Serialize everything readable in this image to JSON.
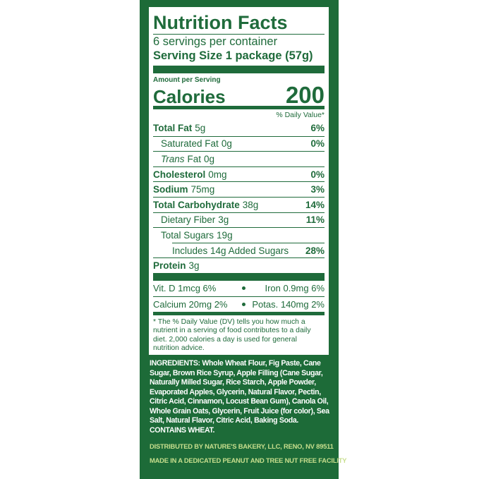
{
  "label": {
    "title": "Nutrition Facts",
    "servings": "6 servings per container",
    "serving_size": "Serving Size 1 package (57g)",
    "amount_per_serving": "Amount per Serving",
    "calories_label": "Calories",
    "calories": "200",
    "dv_header": "% Daily Value*",
    "nutrients": [
      {
        "name": "Total Fat",
        "amount": "5g",
        "dv": "6%",
        "bold": true,
        "level": 0
      },
      {
        "name": "Saturated Fat",
        "amount": "0g",
        "dv": "0%",
        "bold": false,
        "level": 1
      },
      {
        "name": "Trans",
        "name_rest": "Fat",
        "amount": "0g",
        "italic": true,
        "bold": false,
        "level": 1
      },
      {
        "name": "Cholesterol",
        "amount": "0mg",
        "dv": "0%",
        "bold": true,
        "level": 0
      },
      {
        "name": "Sodium",
        "amount": "75mg",
        "dv": "3%",
        "bold": true,
        "level": 0
      },
      {
        "name": "Total Carbohydrate",
        "amount": "38g",
        "dv": "14%",
        "bold": true,
        "level": 0
      },
      {
        "name": "Dietary Fiber",
        "amount": "3g",
        "dv": "11%",
        "bold": false,
        "level": 1
      },
      {
        "name": "Total Sugars",
        "amount": "19g",
        "bold": false,
        "level": 1
      },
      {
        "name": "Includes 14g Added Sugars",
        "dv": "28%",
        "bold": false,
        "level": 2
      },
      {
        "name": "Protein",
        "amount": "3g",
        "bold": true,
        "level": 0
      }
    ],
    "vitamins": [
      [
        "Vit. D 1mcg 6%",
        "Iron 0.9mg 6%"
      ],
      [
        "Calcium 20mg 2%",
        "Potas. 140mg 2%"
      ]
    ],
    "footnote": "* The % Daily Value (DV) tells you how much a nutrient in a serving of food contributes to a daily diet. 2,000 calories a day is used for general nutrition advice."
  },
  "ingredients": {
    "label": "INGREDIENTS:",
    "text": "Whole Wheat Flour, Fig Paste, Cane Sugar, Brown Rice Syrup, Apple Filling (Cane Sugar, Naturally Milled Sugar, Rice Starch, Apple Powder, Evaporated Apples, Glycerin, Natural Flavor, Pectin, Citric Acid, Cinnamon, Locust Bean Gum), Canola Oil, Whole Grain Oats, Glycerin, Fruit Juice (for color), Sea Salt, Natural Flavor, Citric Acid, Baking Soda.",
    "allergen": "CONTAINS WHEAT."
  },
  "footer": {
    "distributed": "DISTRIBUTED BY NATURE'S BAKERY, LLC, RENO, NV 89511",
    "facility": "MADE IN A DEDICATED PEANUT AND TREE NUT FREE FACILITY"
  }
}
